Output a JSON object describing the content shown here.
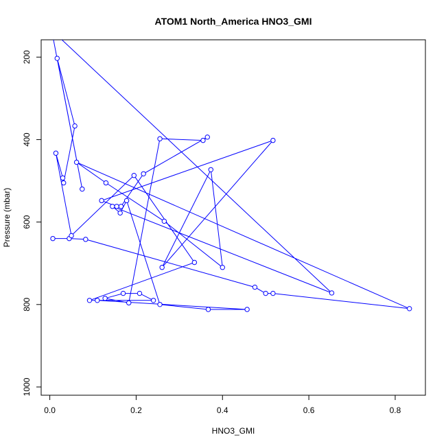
{
  "chart_data": {
    "type": "line",
    "title": "ATOM1 North_America HNO3_GMI",
    "xlabel": "HNO3_GMI",
    "ylabel": "Pressure (mbar)",
    "xlim": [
      -0.02,
      0.87
    ],
    "ylim": [
      1020,
      158
    ],
    "y_reversed": true,
    "x_ticks": [
      0.0,
      0.2,
      0.4,
      0.6,
      0.8
    ],
    "x_tick_labels": [
      "0.0",
      "0.2",
      "0.4",
      "0.6",
      "0.8"
    ],
    "y_ticks": [
      200,
      400,
      600,
      800,
      1000
    ],
    "y_tick_labels": [
      "200",
      "400",
      "600",
      "800",
      "1000"
    ],
    "grid": false,
    "legend": "none",
    "line_color": "#0000ff",
    "marker": "open-circle",
    "series": [
      {
        "x": [
          0.007,
          0.045,
          0.083,
          0.475,
          0.5,
          0.517,
          0.833,
          0.062,
          0.13,
          0.265,
          0.4,
          0.373,
          0.26,
          0.517,
          0.12,
          0.155,
          0.165,
          0.217,
          0.365,
          0.355,
          0.255,
          0.183,
          0.128,
          0.17,
          0.208,
          0.24,
          0.092,
          0.335,
          0.195,
          0.05,
          0.014,
          0.03,
          0.032,
          0.058,
          0.017,
          0.075,
          0.008,
          0.012,
          0.025,
          0.653,
          0.145,
          0.163,
          0.178,
          0.255,
          0.367,
          0.457,
          0.11
        ],
        "y": [
          640,
          640,
          642,
          758,
          773,
          773,
          810,
          455,
          505,
          598,
          710,
          473,
          710,
          402,
          548,
          562,
          562,
          483,
          394,
          402,
          398,
          796,
          785,
          773,
          773,
          790,
          790,
          698,
          487,
          633,
          433,
          493,
          505,
          367,
          203,
          520,
          155,
          155,
          155,
          772,
          562,
          578,
          548,
          800,
          812,
          812,
          790
        ]
      }
    ]
  }
}
